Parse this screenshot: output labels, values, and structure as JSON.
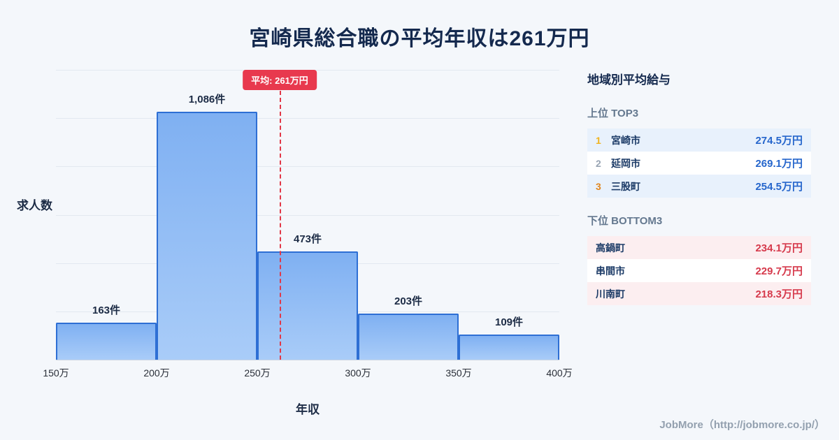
{
  "page": {
    "title": "宮崎県総合職の平均年収は261万円",
    "footer": "JobMore（http://jobmore.co.jp/）"
  },
  "chart_data": {
    "type": "bar",
    "title": "宮崎県総合職の平均年収は261万円",
    "xlabel": "年収",
    "ylabel": "求人数",
    "bin_edges_labels": [
      "150万",
      "200万",
      "250万",
      "300万",
      "350万",
      "400万"
    ],
    "bin_edges_values": [
      150,
      200,
      250,
      300,
      350,
      400
    ],
    "values": [
      163,
      1086,
      473,
      203,
      109
    ],
    "value_labels": [
      "163件",
      "1,086件",
      "473件",
      "203件",
      "109件"
    ],
    "average_value": 261,
    "average_label": "平均: 261万円",
    "x_range": [
      150,
      400
    ],
    "grid": true,
    "legend": "none"
  },
  "sidebar": {
    "title": "地域別平均給与",
    "top": {
      "label": "上位 TOP3",
      "rows": [
        {
          "rank": "1",
          "name": "宮崎市",
          "value": "274.5万円"
        },
        {
          "rank": "2",
          "name": "延岡市",
          "value": "269.1万円"
        },
        {
          "rank": "3",
          "name": "三股町",
          "value": "254.5万円"
        }
      ]
    },
    "bottom": {
      "label": "下位 BOTTOM3",
      "rows": [
        {
          "name": "高鍋町",
          "value": "234.1万円"
        },
        {
          "name": "串間市",
          "value": "229.7万円"
        },
        {
          "name": "川南町",
          "value": "218.3万円"
        }
      ]
    }
  },
  "colors": {
    "bar_border": "#2e6fd4",
    "bar_fill_top": "#7fb0f2",
    "bar_fill_bottom": "#a9ccf8",
    "average_red": "#e8394e",
    "top_value_blue": "#2666cc",
    "bottom_value_red": "#d63a4c",
    "title_navy": "#14294e",
    "background": "#f4f7fb"
  }
}
